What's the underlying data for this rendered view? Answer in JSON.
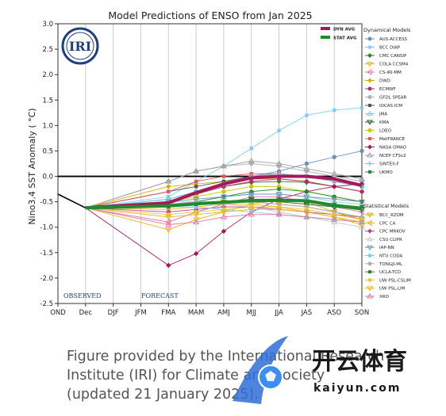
{
  "chart_data": {
    "type": "line",
    "title": "Model Predictions of ENSO from Jan 2025",
    "ylabel": "Nino3.4 SST Anomaly ( °C)",
    "xlabel": "",
    "categories": [
      "OND",
      "Dec",
      "DJF",
      "JFM",
      "FMA",
      "MAM",
      "AMJ",
      "MJJ",
      "JJA",
      "JAS",
      "ASO",
      "SON"
    ],
    "ylim": [
      -2.5,
      3.0
    ],
    "yticks": [
      "3.0",
      "2.5",
      "2.0",
      "1.5",
      "1.0",
      "0.5",
      "0.0",
      "-0.5",
      "-1.0",
      "-1.5",
      "-2.0",
      "-2.5"
    ],
    "grid": "vertical",
    "observed_label": "OBSERVED",
    "forecast_label": "FORECAST",
    "observed": [
      -0.35,
      -0.62
    ],
    "averages": [
      {
        "name": "DYN AVG",
        "color": "#a3195b",
        "values": [
          -0.52,
          -0.32,
          -0.15,
          -0.03,
          0.0,
          0.0,
          -0.05,
          -0.18
        ]
      },
      {
        "name": "STAT AVG",
        "color": "#1e8c2e",
        "values": [
          -0.58,
          -0.54,
          -0.51,
          -0.48,
          -0.47,
          -0.48,
          -0.57,
          -0.64
        ]
      }
    ],
    "dynamical_title": "Dynamical Models",
    "dynamical": [
      {
        "name": "AUS-ACCESS",
        "color": "#6c8ebf",
        "marker": "circle",
        "values": [
          -0.45,
          -0.3,
          -0.15,
          0.0,
          0.1,
          0.25,
          0.38,
          0.5
        ]
      },
      {
        "name": "BCC DIAP",
        "color": "#7fd0ef",
        "marker": "square",
        "values": [
          -0.4,
          -0.1,
          0.2,
          0.55,
          0.9,
          1.2,
          1.3,
          1.35
        ]
      },
      {
        "name": "CMC CANSIP",
        "color": "#2e7d32",
        "marker": "diamond",
        "values": [
          -0.5,
          -0.35,
          -0.2,
          -0.12,
          -0.1,
          -0.12,
          -0.2,
          -0.3
        ]
      },
      {
        "name": "COLA CCSM4",
        "color": "#e6b422",
        "marker": "triangle-down",
        "values": [
          -1.05,
          -0.85,
          -0.7,
          -0.55,
          -0.45,
          -0.5,
          -0.7,
          -0.85
        ]
      },
      {
        "name": "CS-IRI-MM",
        "color": "#e377a0",
        "marker": "triangle-left",
        "values": [
          -0.9,
          -0.7,
          -0.55,
          -0.4,
          -0.4,
          -0.5,
          -0.6,
          -0.7
        ]
      },
      {
        "name": "DWD",
        "color": "#d4b000",
        "marker": "diamond",
        "values": [
          -0.2,
          -0.15,
          -0.1,
          -0.05,
          -0.05,
          -0.1,
          -0.2,
          -0.3
        ]
      },
      {
        "name": "ECMWF",
        "color": "#b03060",
        "marker": "circle",
        "values": [
          -0.55,
          -0.35,
          -0.2,
          -0.1,
          -0.05,
          -0.1,
          -0.2,
          -0.3
        ]
      },
      {
        "name": "GFDL SPEAR",
        "color": "#b0b0b0",
        "marker": "circle",
        "values": [
          -0.1,
          0.1,
          0.2,
          0.25,
          0.2,
          0.1,
          0.0,
          -0.1
        ]
      },
      {
        "name": "IOCAS ICM",
        "color": "#555555",
        "marker": "square",
        "values": [
          -0.3,
          -0.2,
          -0.1,
          0.0,
          0.05,
          0.0,
          -0.1,
          -0.2
        ]
      },
      {
        "name": "JMA",
        "color": "#80d0d0",
        "marker": "triangle-up",
        "values": [
          -0.55,
          -0.5,
          -0.4,
          -0.35,
          -0.35,
          -0.4,
          -0.5,
          -0.55
        ]
      },
      {
        "name": "KMA",
        "color": "#1b5e20",
        "marker": "triangle-down",
        "values": [
          -0.6,
          -0.55,
          -0.5,
          -0.45,
          -0.5,
          -0.55,
          -0.6,
          -0.65
        ]
      },
      {
        "name": "LDEO",
        "color": "#c8c800",
        "marker": "circle",
        "values": [
          -0.5,
          -0.4,
          -0.3,
          -0.2,
          -0.2,
          -0.3,
          -0.4,
          -0.5
        ]
      },
      {
        "name": "MetFRANCE",
        "color": "#e05a5a",
        "marker": "square",
        "values": [
          -0.3,
          -0.1,
          0.0,
          0.05,
          0.05,
          0.0,
          -0.1,
          -0.15
        ]
      },
      {
        "name": "NASA GMAO",
        "color": "#a3195b",
        "marker": "diamond",
        "values": [
          -1.75,
          -1.52,
          -1.08,
          -0.7,
          -0.45,
          -0.3,
          -0.2,
          -0.15
        ]
      },
      {
        "name": "NCEP CFSv2",
        "color": "#9e9e9e",
        "marker": "triangle-up",
        "values": [
          -0.1,
          0.1,
          0.2,
          0.3,
          0.25,
          0.15,
          0.05,
          -0.05
        ]
      },
      {
        "name": "SINTEX-F",
        "color": "#7ec8e3",
        "marker": "plus",
        "values": [
          -0.45,
          -0.3,
          -0.15,
          0.0,
          0.05,
          0.0,
          -0.1,
          -0.2
        ]
      },
      {
        "name": "UKMO",
        "color": "#1e8c2e",
        "marker": "square",
        "values": [
          -0.6,
          -0.5,
          -0.4,
          -0.3,
          -0.25,
          -0.3,
          -0.4,
          -0.5
        ]
      }
    ],
    "statistical_title": "Statistical Models",
    "statistical": [
      {
        "name": "BCC_RZDM",
        "color": "#d4b000",
        "marker": "triangle-down",
        "values": [
          -0.6,
          -0.55,
          -0.5,
          -0.5,
          -0.55,
          -0.6,
          -0.7,
          -0.85
        ]
      },
      {
        "name": "CPC CA",
        "color": "#e6b422",
        "marker": "triangle-left",
        "values": [
          -0.65,
          -0.6,
          -0.55,
          -0.55,
          -0.6,
          -0.7,
          -0.8,
          -0.95
        ]
      },
      {
        "name": "CPC MRKOV",
        "color": "#c04090",
        "marker": "diamond",
        "values": [
          -0.7,
          -0.65,
          -0.6,
          -0.6,
          -0.65,
          -0.7,
          -0.75,
          -0.8
        ]
      },
      {
        "name": "CSU CLIPR",
        "color": "#c8c8c8",
        "marker": "triangle-up",
        "values": [
          -0.5,
          -0.5,
          -0.55,
          -0.6,
          -0.7,
          -0.8,
          -0.9,
          -1.0
        ]
      },
      {
        "name": "IAP-NN",
        "color": "#6c8ebf",
        "marker": "triangle-down",
        "values": [
          -0.5,
          -0.45,
          -0.4,
          -0.35,
          -0.35,
          -0.4,
          -0.45,
          -0.5
        ]
      },
      {
        "name": "NTU CODA",
        "color": "#7fd0ef",
        "marker": "circle",
        "values": [
          -0.6,
          -0.6,
          -0.65,
          -0.7,
          -0.75,
          -0.8,
          -0.85,
          -0.9
        ]
      },
      {
        "name": "TONGJI-ML",
        "color": "#aaaaaa",
        "marker": "diamond",
        "values": [
          -0.55,
          -0.5,
          -0.5,
          -0.5,
          -0.55,
          -0.6,
          -0.7,
          -0.8
        ]
      },
      {
        "name": "UCLA-TCD",
        "color": "#2e7d32",
        "marker": "square",
        "values": [
          -0.6,
          -0.55,
          -0.5,
          -0.45,
          -0.45,
          -0.5,
          -0.55,
          -0.6
        ]
      },
      {
        "name": "UW PSL-CSLIM",
        "color": "#f0c040",
        "marker": "diamond",
        "values": [
          -0.75,
          -0.7,
          -0.65,
          -0.6,
          -0.6,
          -0.65,
          -0.75,
          -0.85
        ]
      },
      {
        "name": "UW PSL-LIM",
        "color": "#e6b422",
        "marker": "triangle-down",
        "values": [
          -0.8,
          -0.75,
          -0.7,
          -0.65,
          -0.65,
          -0.7,
          -0.8,
          -0.9
        ]
      },
      {
        "name": "XRO",
        "color": "#e377a0",
        "marker": "triangle-up",
        "values": [
          -0.95,
          -0.9,
          -0.8,
          -0.75,
          -0.75,
          -0.8,
          -0.85,
          -0.9
        ]
      }
    ]
  },
  "caption": {
    "line1": "Figure provided by the International Research",
    "line2": "Institute (IRI) for Climate and Society",
    "line3": "(updated 21 January 2025)."
  },
  "logo": {
    "text": "IRI",
    "color": "#1f3f7f"
  },
  "watermark": {
    "brand": "开云体育",
    "url": "kaiyun.com"
  },
  "colors": {
    "zero_line": "#000000",
    "grid": "#cccccc",
    "label_blue": "#1f3f9f"
  }
}
